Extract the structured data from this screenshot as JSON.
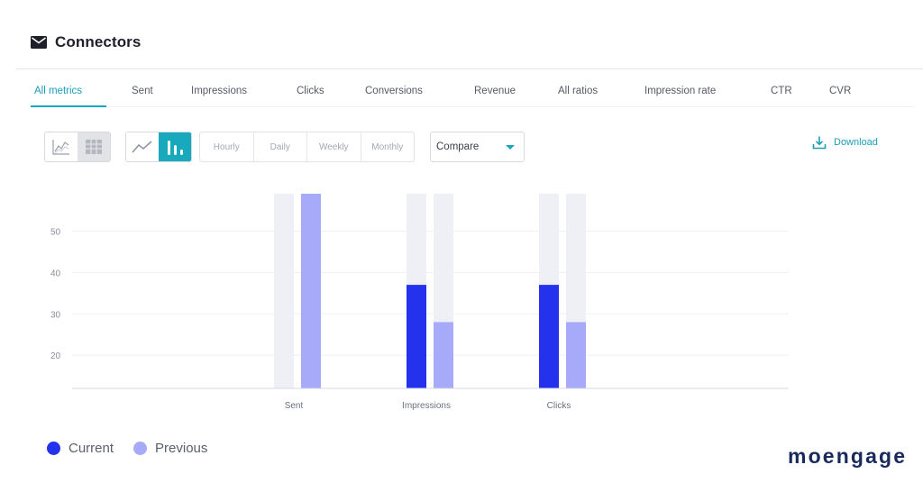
{
  "header": {
    "title": "Connectors",
    "icon": "mail-icon"
  },
  "tabs": [
    {
      "label": "All metrics",
      "active": true
    },
    {
      "label": "Sent"
    },
    {
      "label": "Impressions"
    },
    {
      "label": "Clicks"
    },
    {
      "label": "Conversions"
    },
    {
      "label": "Revenue"
    },
    {
      "label": "All ratios"
    },
    {
      "label": "Impression rate"
    },
    {
      "label": "CTR"
    },
    {
      "label": "CVR"
    }
  ],
  "toolbar": {
    "view_toggle": {
      "options": [
        "trend-chart-icon",
        "table-icon"
      ],
      "selected": "table-icon"
    },
    "chart_toggle": {
      "options": [
        "line-chart-icon",
        "bar-chart-icon"
      ],
      "selected": "bar-chart-icon"
    },
    "granularity": [
      "Hourly",
      "Daily",
      "Weekly",
      "Monthly"
    ],
    "compare": {
      "value": "Compare"
    },
    "download_label": "Download"
  },
  "colors": {
    "accent": "#1aa6bd",
    "current": "#2432ee",
    "previous": "#a7aaf9",
    "track": "#eff0f5"
  },
  "chart_data": {
    "type": "bar",
    "categories": [
      "Sent",
      "Impressions",
      "Clicks"
    ],
    "series": [
      {
        "name": "Current",
        "values": [
          null,
          37,
          37
        ]
      },
      {
        "name": "Previous",
        "values": [
          59,
          28,
          28
        ]
      }
    ],
    "yticks": [
      20,
      30,
      40,
      50
    ],
    "ylim": [
      12,
      59
    ],
    "grid": true,
    "legend": "bottom-left"
  },
  "legend": {
    "current": "Current",
    "previous": "Previous"
  },
  "brand": {
    "name": "moengage"
  }
}
